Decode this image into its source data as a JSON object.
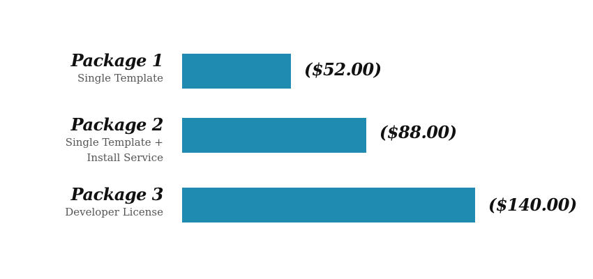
{
  "chart_data": {
    "type": "bar",
    "orientation": "horizontal",
    "categories": [
      "Package 1",
      "Package 2",
      "Package 3"
    ],
    "descriptions": [
      [
        "Single Template"
      ],
      [
        "Single Template +",
        "Install Service"
      ],
      [
        "Developer License"
      ]
    ],
    "values": [
      52.0,
      88.0,
      140.0
    ],
    "value_labels": [
      "($52.00)",
      "($88.00)",
      "($140.00)"
    ],
    "xlim": [
      0,
      140
    ],
    "bar_color": "#1f8bb0",
    "grid": false,
    "legend": "none"
  }
}
